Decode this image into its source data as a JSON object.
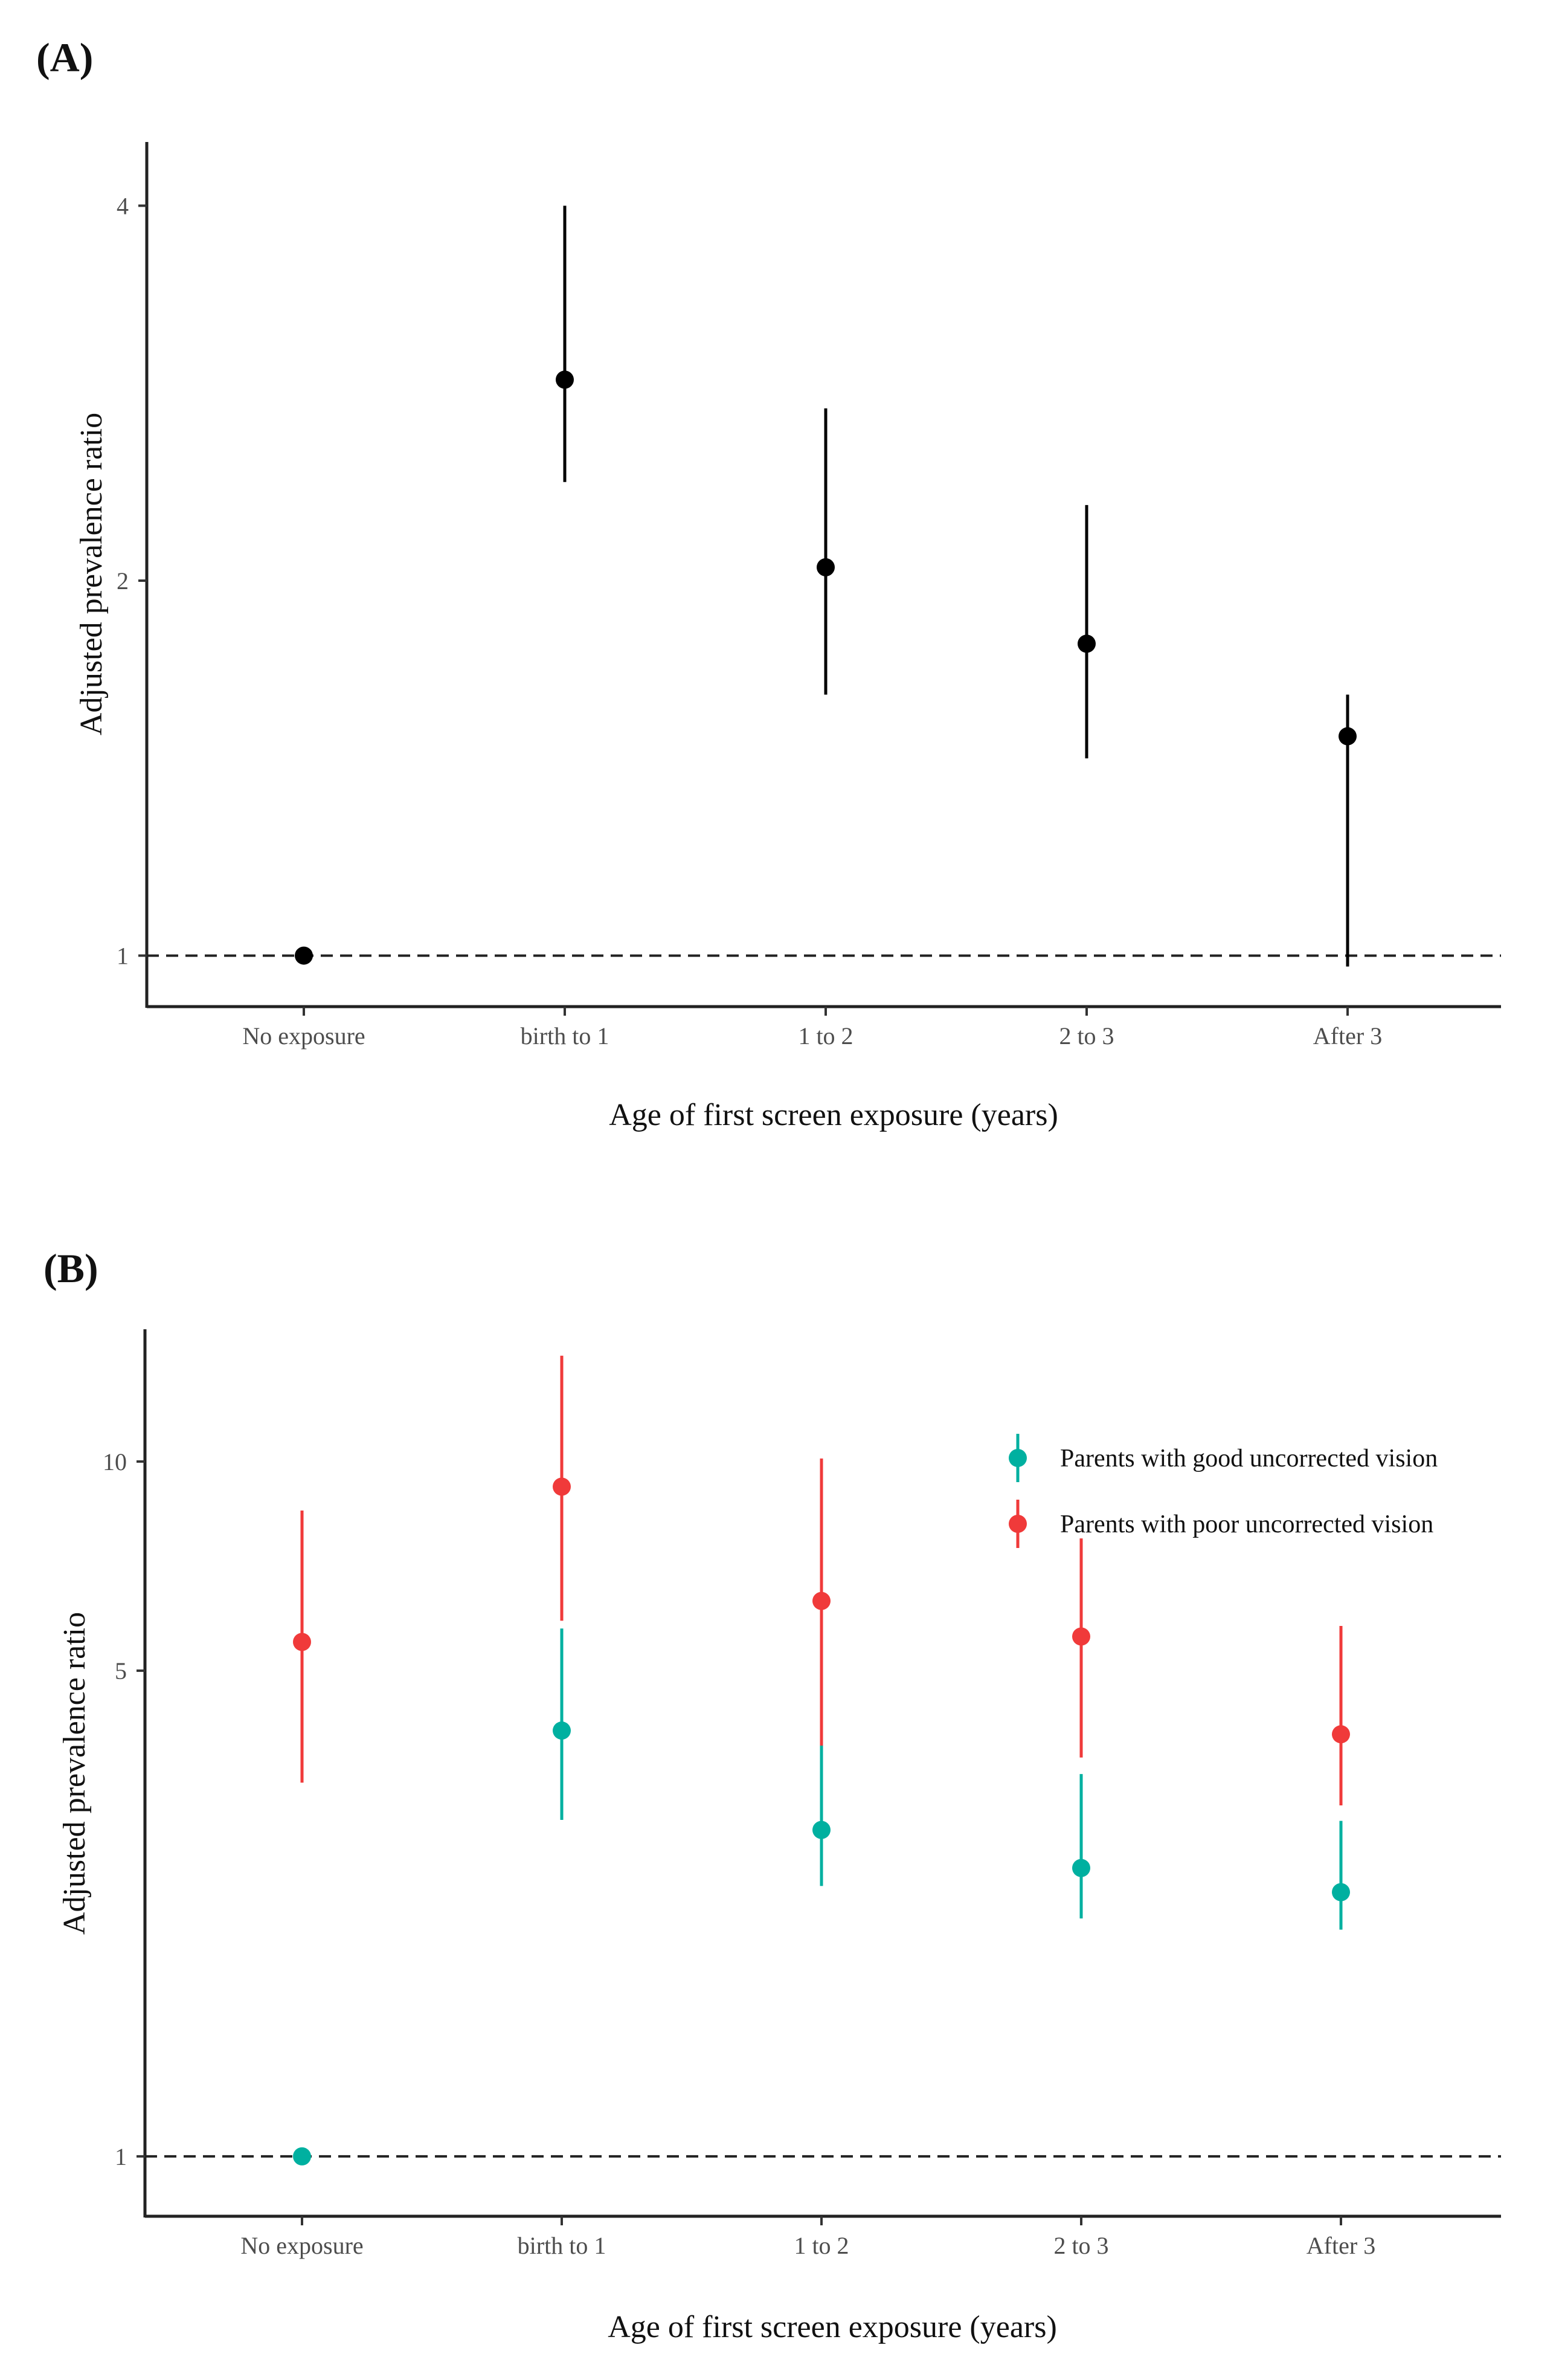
{
  "chart_data": [
    {
      "panel_label": "(A)",
      "type": "scatter",
      "subtype": "point-with-error-bars",
      "categories": [
        "No exposure",
        "birth to 1",
        "1 to 2",
        "2 to 3",
        "After 3"
      ],
      "y_scale": "log",
      "yticks": [
        1,
        2,
        4
      ],
      "ylim": [
        0.91,
        4.5
      ],
      "xlabel": "Age of first screen exposure (years)",
      "ylabel": "Adjusted prevalence ratio",
      "reference_line": 1,
      "grid": false,
      "series": [
        {
          "name": "",
          "color": "#000000",
          "estimate": [
            1.0,
            2.9,
            2.05,
            1.78,
            1.5
          ],
          "lower": [
            1.0,
            2.4,
            1.62,
            1.44,
            0.98
          ],
          "upper": [
            1.0,
            4.0,
            2.75,
            2.3,
            1.62
          ]
        }
      ]
    },
    {
      "panel_label": "(B)",
      "type": "scatter",
      "subtype": "point-with-error-bars",
      "categories": [
        "No exposure",
        "birth to 1",
        "1 to 2",
        "2 to 3",
        "After 3"
      ],
      "y_scale": "log",
      "yticks": [
        1,
        5,
        10
      ],
      "ylim": [
        0.82,
        15.5
      ],
      "xlabel": "Age of first screen exposure (years)",
      "ylabel": "Adjusted prevalence ratio",
      "reference_line": 1,
      "grid": false,
      "legend_position": "top-right",
      "series": [
        {
          "name": "Parents with good uncorrected vision",
          "color": "#00b0a0",
          "estimate": [
            1.0,
            4.1,
            2.95,
            2.6,
            2.4
          ],
          "lower": [
            1.0,
            3.05,
            2.45,
            2.2,
            2.12
          ],
          "upper": [
            1.0,
            5.75,
            4.25,
            3.55,
            3.04
          ]
        },
        {
          "name": "Parents with poor uncorrected vision",
          "color": "#f03a3a",
          "estimate": [
            5.5,
            9.2,
            6.3,
            5.6,
            4.05
          ],
          "lower": [
            3.45,
            5.9,
            3.9,
            3.75,
            3.2
          ],
          "upper": [
            8.5,
            14.2,
            10.1,
            7.75,
            5.8
          ]
        }
      ]
    }
  ]
}
